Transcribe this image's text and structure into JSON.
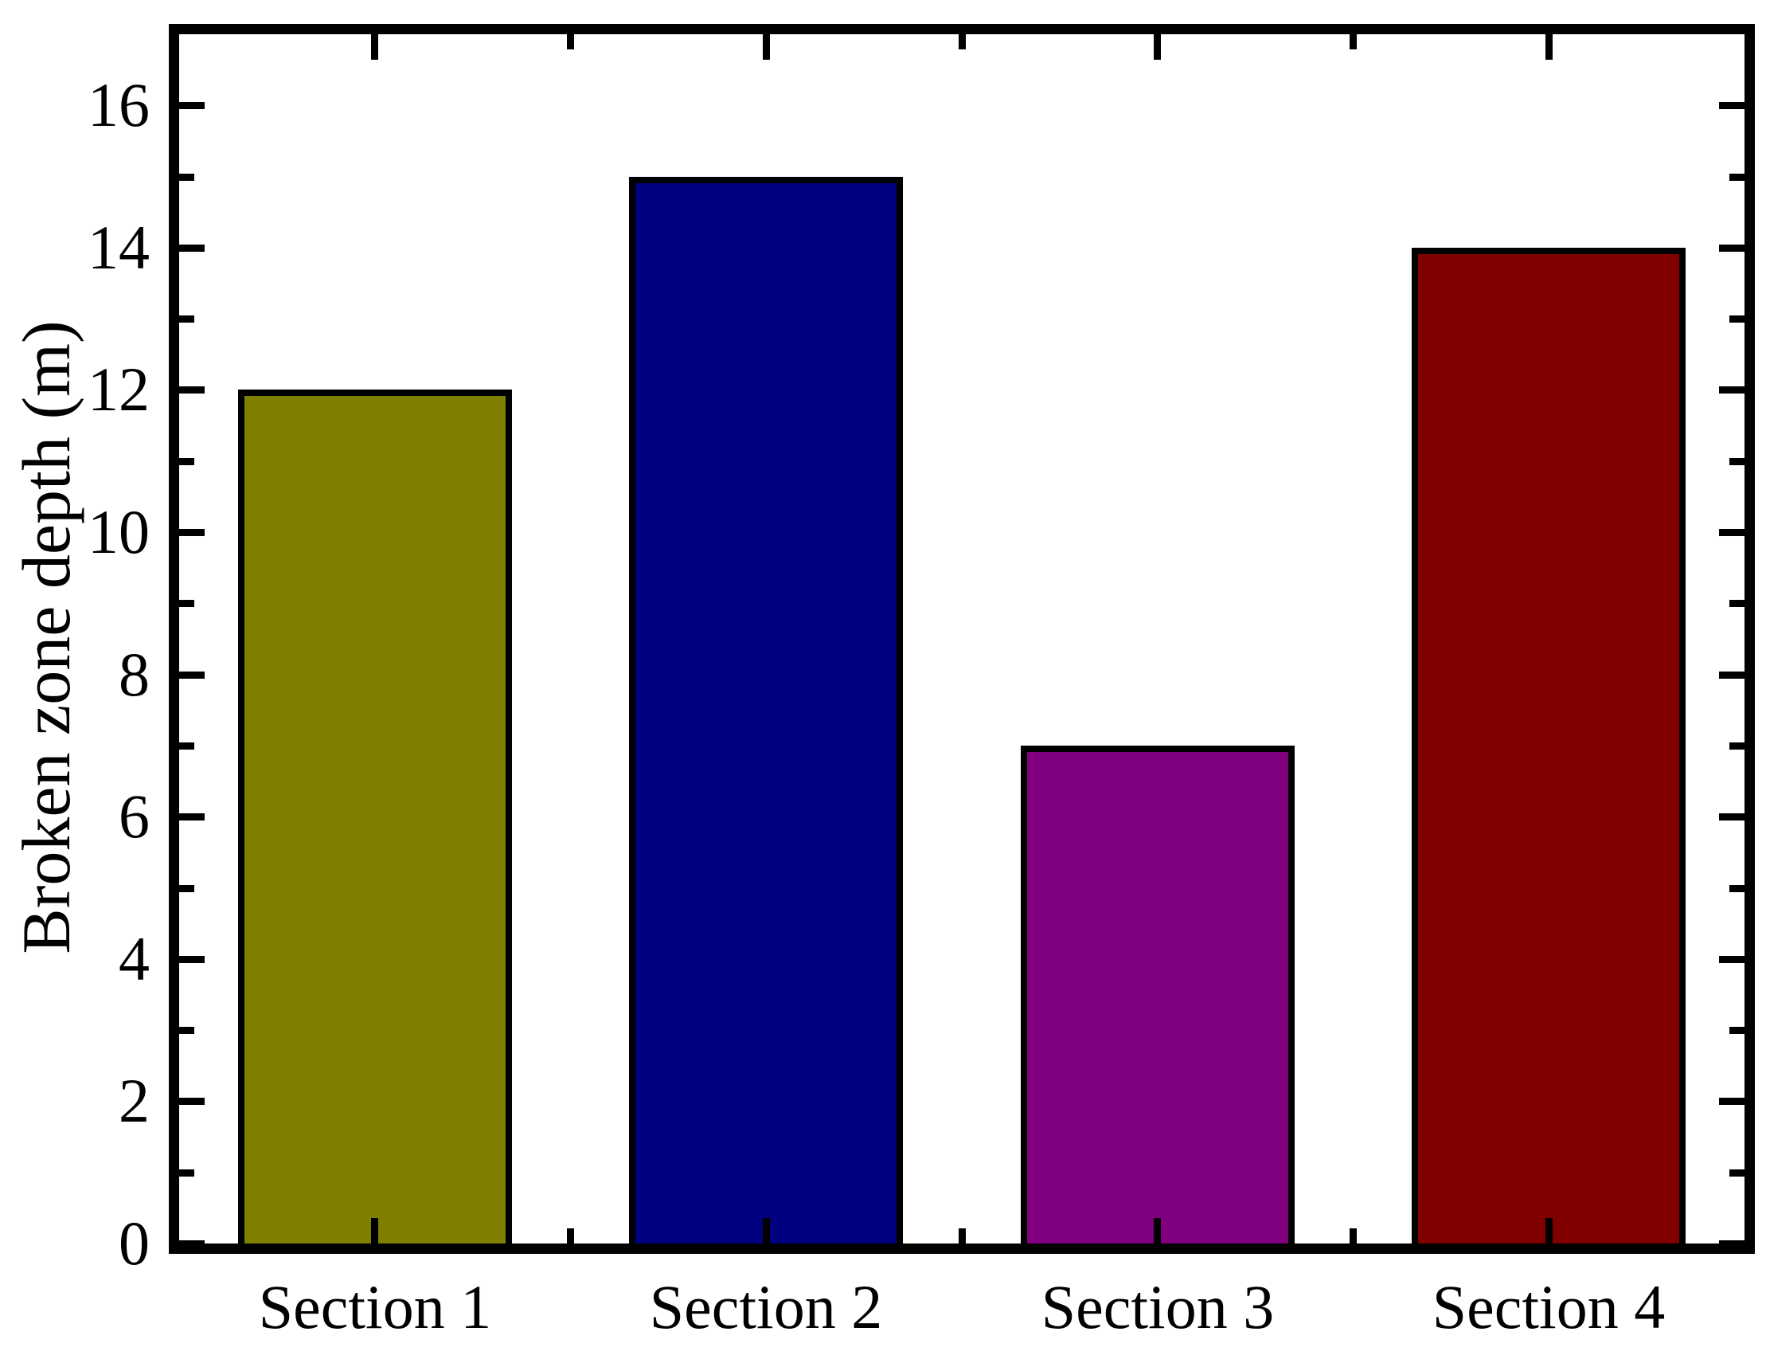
{
  "chart_data": {
    "type": "bar",
    "title": "",
    "xlabel": "",
    "ylabel": "Broken zone depth (m)",
    "categories": [
      "Section 1",
      "Section 2",
      "Section 3",
      "Section 4"
    ],
    "values": [
      12,
      15,
      7,
      14
    ],
    "bar_colors": [
      "#808000",
      "#000080",
      "#800080",
      "#800000"
    ],
    "bar_edge_color": "#000000",
    "frame_color": "#000000",
    "background_color": "#ffffff",
    "ylim": [
      0,
      17
    ],
    "y_major_ticks": [
      0,
      2,
      4,
      6,
      8,
      10,
      12,
      14,
      16
    ],
    "y_minor_ticks": [
      1,
      3,
      5,
      7,
      9,
      11,
      13,
      15
    ],
    "y_tick_labels": [
      "0",
      "2",
      "4",
      "6",
      "8",
      "10",
      "12",
      "14",
      "16"
    ],
    "grid": false,
    "legend_position": "none",
    "tick_direction": "in",
    "bar_width_fraction": 0.7
  }
}
